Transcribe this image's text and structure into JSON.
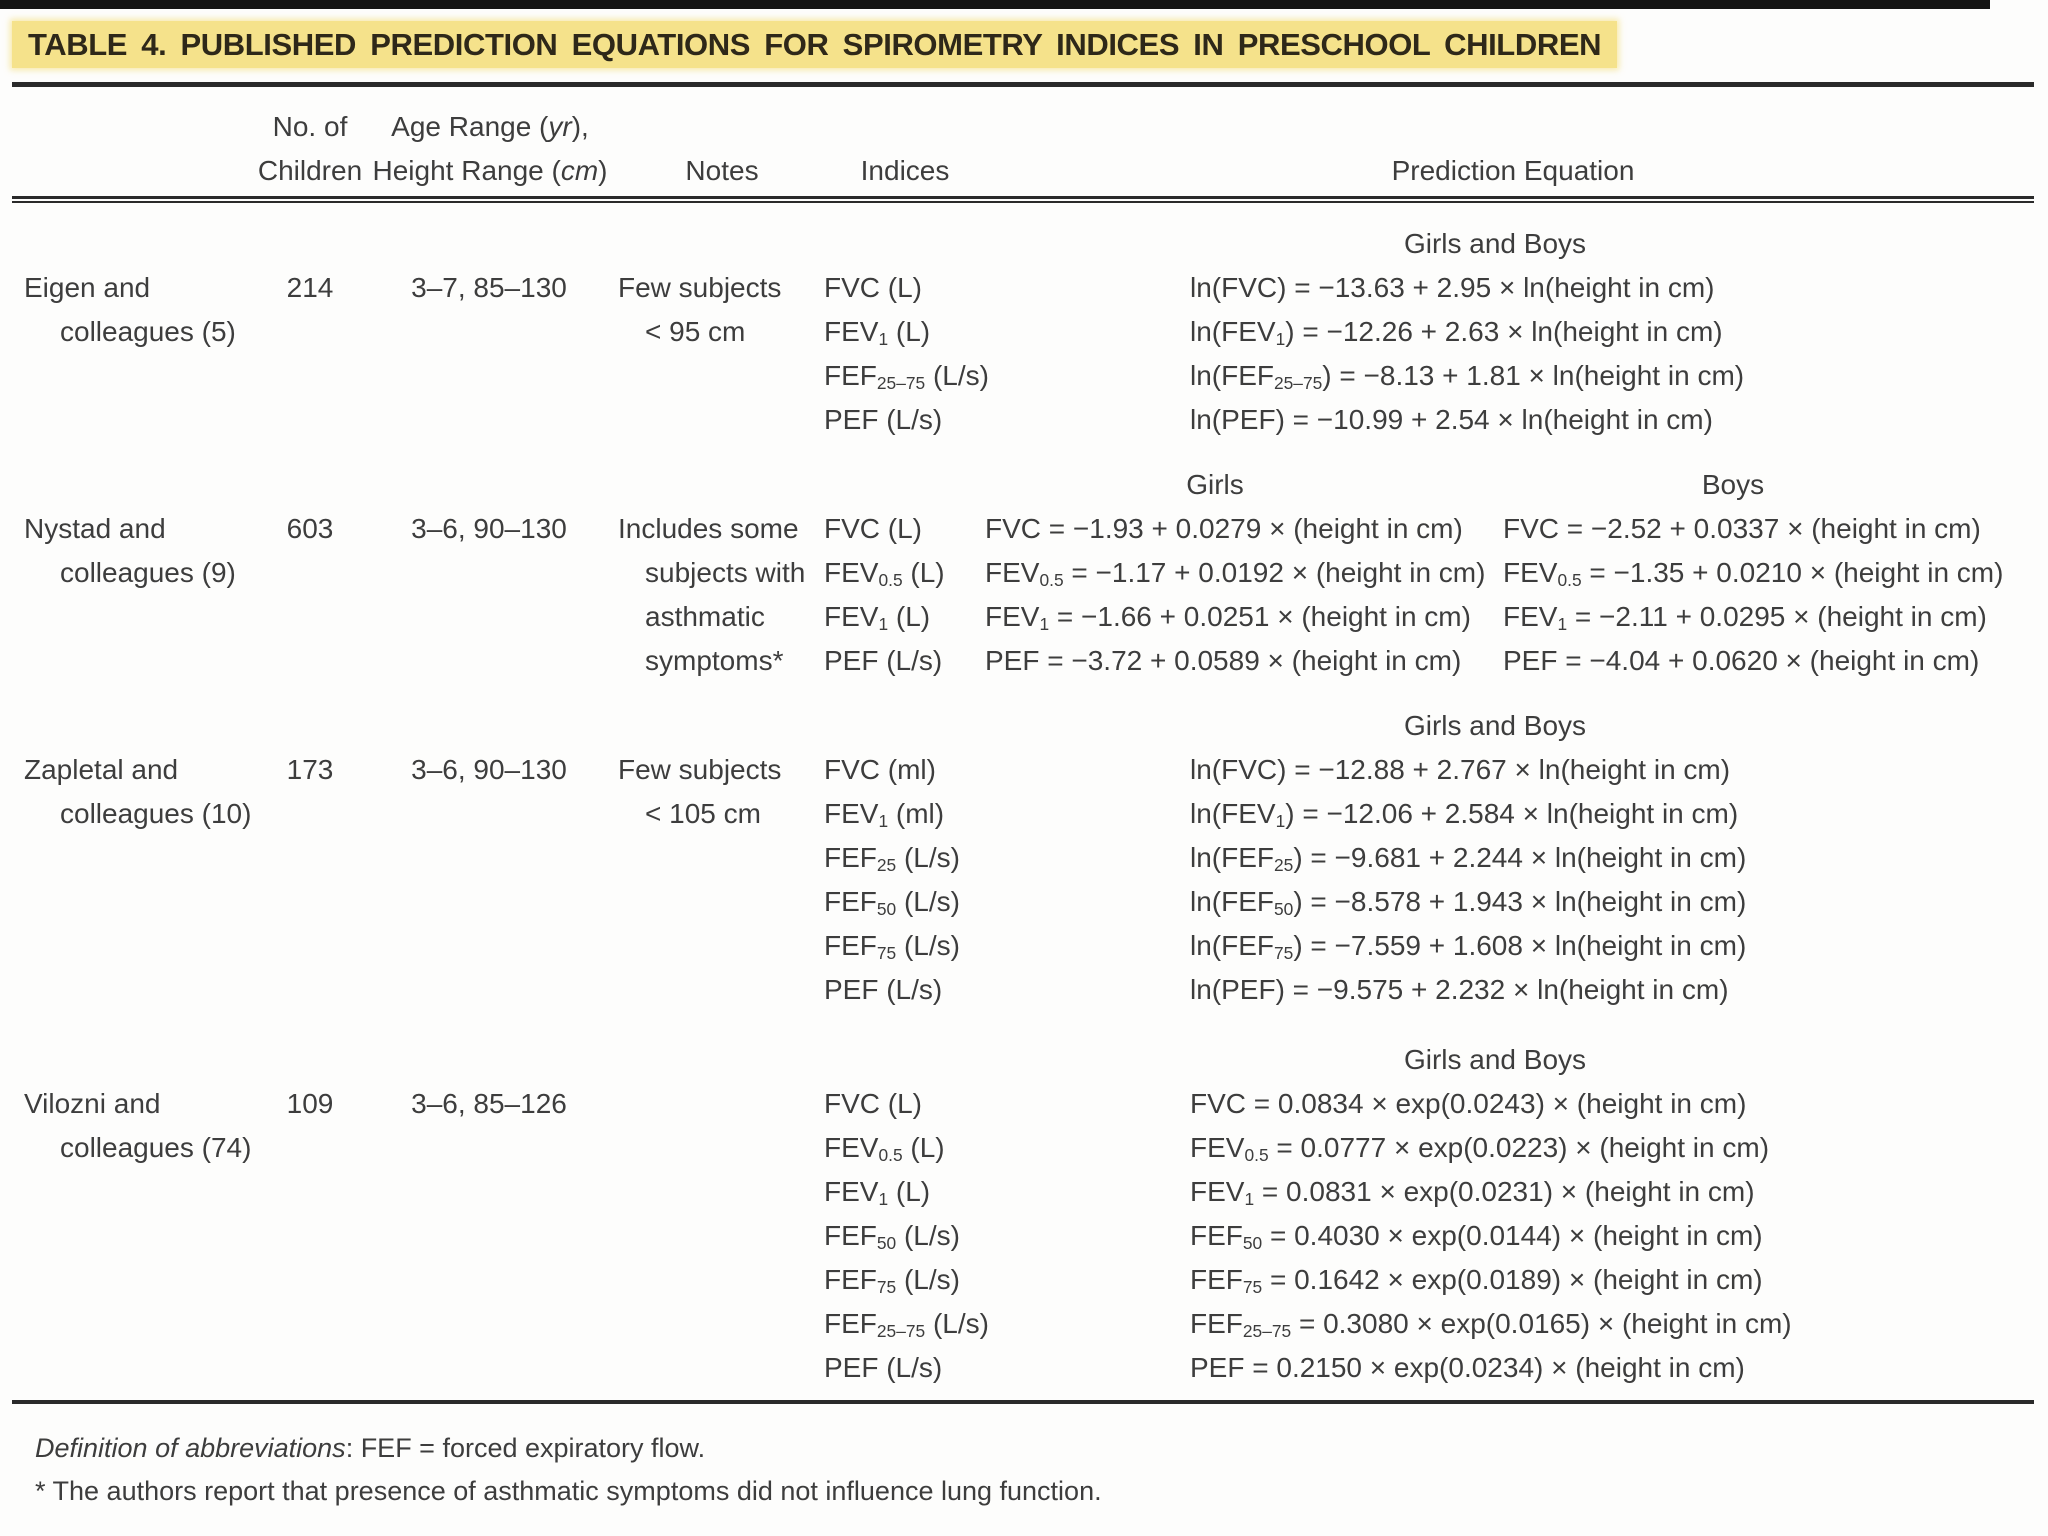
{
  "title": "TABLE 4. PUBLISHED PREDICTION EQUATIONS FOR SPIROMETRY INDICES IN PRESCHOOL CHILDREN",
  "columns": {
    "children": [
      "No. of",
      "Children"
    ],
    "range": [
      "Age Range (~{yr}),",
      "Height Range (~{cm})"
    ],
    "notes": "Notes",
    "indices": "Indices",
    "equation": "Prediction Equation"
  },
  "rows": [
    {
      "study_lines": [
        "Eigen and",
        "colleagues (5)"
      ],
      "n_children": "214",
      "age_height_range": "3–7, 85–130",
      "notes_lines": [
        "Few subjects",
        "< 95 cm"
      ],
      "indices": [
        "FVC (L)",
        "FEV_{1} (L)",
        "FEF_{25–75} (L/s)",
        "PEF (L/s)"
      ],
      "groups": [
        {
          "header": "Girls and Boys",
          "equations": [
            "ln(FVC) = −13.63 + 2.95 × ln(height in cm)",
            "ln(FEV_{1}) = −12.26 + 2.63 × ln(height in cm)",
            "ln(FEF_{25–75}) = −8.13 + 1.81 × ln(height in cm)",
            "ln(PEF) = −10.99 + 2.54 × ln(height in cm)"
          ]
        }
      ]
    },
    {
      "study_lines": [
        "Nystad and",
        "colleagues (9)"
      ],
      "n_children": "603",
      "age_height_range": "3–6, 90–130",
      "notes_lines": [
        "Includes some",
        "subjects with",
        "asthmatic",
        "symptoms*"
      ],
      "indices": [
        "FVC (L)",
        "FEV_{0.5} (L)",
        "FEV_{1} (L)",
        "PEF (L/s)"
      ],
      "groups": [
        {
          "header": "Girls",
          "equations": [
            "FVC = −1.93 + 0.0279 × (height in cm)",
            "FEV_{0.5} = −1.17 + 0.0192 × (height in cm)",
            "FEV_{1} = −1.66 + 0.0251 × (height in cm)",
            "PEF = −3.72 + 0.0589 × (height in cm)"
          ]
        },
        {
          "header": "Boys",
          "equations": [
            "FVC = −2.52 + 0.0337 × (height in cm)",
            "FEV_{0.5} = −1.35 + 0.0210 × (height in cm)",
            "FEV_{1} = −2.11 + 0.0295 × (height in cm)",
            "PEF = −4.04 + 0.0620 × (height in cm)"
          ]
        }
      ]
    },
    {
      "study_lines": [
        "Zapletal and",
        "colleagues (10)"
      ],
      "n_children": "173",
      "age_height_range": "3–6, 90–130",
      "notes_lines": [
        "Few subjects",
        "< 105 cm"
      ],
      "indices": [
        "FVC (ml)",
        "FEV_{1} (ml)",
        "FEF_{25} (L/s)",
        "FEF_{50} (L/s)",
        "FEF_{75} (L/s)",
        "PEF (L/s)"
      ],
      "groups": [
        {
          "header": "Girls and Boys",
          "equations": [
            "ln(FVC) = −12.88 + 2.767 × ln(height in cm)",
            "ln(FEV_{1}) = −12.06 + 2.584 × ln(height in cm)",
            "ln(FEF_{25}) = −9.681 + 2.244 × ln(height in cm)",
            "ln(FEF_{50}) = −8.578 + 1.943 × ln(height in cm)",
            "ln(FEF_{75}) = −7.559 + 1.608 × ln(height in cm)",
            "ln(PEF) = −9.575 + 2.232 × ln(height in cm)"
          ]
        }
      ]
    },
    {
      "study_lines": [
        "Vilozni and",
        "colleagues (74)"
      ],
      "n_children": "109",
      "age_height_range": "3–6, 85–126",
      "notes_lines": [],
      "indices": [
        "FVC (L)",
        "FEV_{0.5} (L)",
        "FEV_{1} (L)",
        "FEF_{50} (L/s)",
        "FEF_{75} (L/s)",
        "FEF_{25–75} (L/s)",
        "PEF (L/s)"
      ],
      "groups": [
        {
          "header": "Girls and Boys",
          "equations": [
            "FVC = 0.0834 × exp(0.0243) × (height in cm)",
            "FEV_{0.5} = 0.0777 × exp(0.0223) × (height in cm)",
            "FEV_{1} = 0.0831 × exp(0.0231) × (height in cm)",
            "FEF_{50} = 0.4030 × exp(0.0144) × (height in cm)",
            "FEF_{75} = 0.1642 × exp(0.0189) × (height in cm)",
            "FEF_{25–75} = 0.3080 × exp(0.0165) × (height in cm)",
            "PEF = 0.2150 × exp(0.0234) × (height in cm)"
          ]
        }
      ]
    }
  ],
  "footnotes": [
    "~{Definition of abbreviations}: FEF = forced expiratory flow.",
    "* The authors report that presence of asthmatic symptoms did not influence lung function."
  ],
  "colors": {
    "highlight": "#f5e28b",
    "text": "#3d3d3d",
    "rule": "#2a2a2a"
  }
}
